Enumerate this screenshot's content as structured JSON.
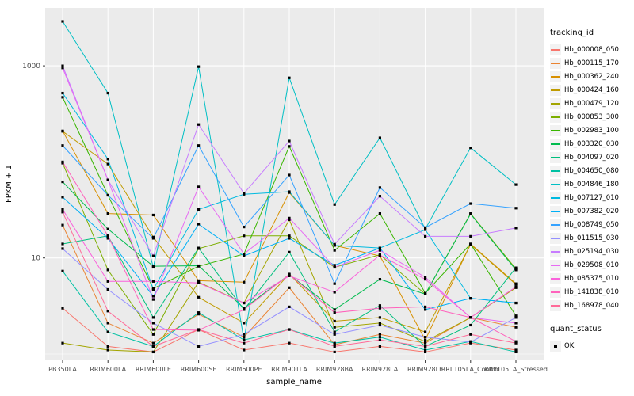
{
  "figure": {
    "background": "#FFFFFF",
    "panel_background": "#EBEBEB",
    "grid_color": "#FFFFFF",
    "axis_text_color": "#4D4D4D",
    "tick_color": "#333333",
    "point_color": "#000000"
  },
  "axes": {
    "x_title": "sample_name",
    "y_title": "FPKM + 1",
    "y_ticks": [
      {
        "label": "1000",
        "value": 1000
      },
      {
        "label": "10",
        "value": 10
      }
    ],
    "y_minor_gridlines": [
      100,
      1
    ]
  },
  "legend": {
    "tracking_title": "tracking_id",
    "quant_title": "quant_status",
    "quant_items": [
      {
        "label": "OK",
        "key": "black-square-point"
      }
    ]
  },
  "chart_data": {
    "type": "line",
    "title": "",
    "xlabel": "sample_name",
    "ylabel": "FPKM + 1",
    "y_scale": "log10",
    "ylim": [
      0.9,
      4000
    ],
    "grid": true,
    "legend_position": "right",
    "point_marker": "black-square",
    "categories": [
      "PB350LA",
      "RRIM600LA",
      "RRIM600LE",
      "RRIM600SE",
      "RRIM600PE",
      "RRIM901LA",
      "RRIM928BA",
      "RRIM928LA",
      "RRIM928LE",
      "RRII105LA_Control",
      "RRII105LA_Stressed"
    ],
    "series": [
      {
        "name": "Hb_000008_050",
        "color": "#F8766D",
        "values": [
          3,
          1.2,
          1.05,
          1.8,
          1.1,
          1.3,
          1.05,
          1.2,
          1.05,
          1.3,
          1.1
        ]
      },
      {
        "name": "Hb_000115_170",
        "color": "#EA8331",
        "values": [
          22,
          2.1,
          1.3,
          2.6,
          1.5,
          4.9,
          1.25,
          1.6,
          1.3,
          2.4,
          1.9
        ]
      },
      {
        "name": "Hb_000362_240",
        "color": "#D89000",
        "values": [
          210,
          29,
          28,
          5.8,
          5.6,
          48,
          13.5,
          10.5,
          1.4,
          14,
          5.4
        ]
      },
      {
        "name": "Hb_000424_160",
        "color": "#C09B00",
        "values": [
          208,
          95,
          16.5,
          3.9,
          2.1,
          6.8,
          2.2,
          2.4,
          1.7,
          13.8,
          5.3
        ]
      },
      {
        "name": "Hb_000479_120",
        "color": "#A3A500",
        "values": [
          1.3,
          1.1,
          1.05,
          5.6,
          3.4,
          25,
          1.9,
          2.1,
          1.35,
          2.4,
          4.9
        ]
      },
      {
        "name": "Hb_000853_300",
        "color": "#7CAE00",
        "values": [
          97,
          7.5,
          1.6,
          12.5,
          17,
          17,
          8,
          10.8,
          4.2,
          29,
          7.7
        ]
      },
      {
        "name": "Hb_002983_100",
        "color": "#39B600",
        "values": [
          470,
          45,
          4.8,
          8.2,
          11,
          145,
          12,
          29,
          4.3,
          14,
          2.5
        ]
      },
      {
        "name": "Hb_003320_030",
        "color": "#00BB4E",
        "values": [
          62,
          20,
          8.2,
          8.3,
          3,
          6.7,
          2.9,
          6,
          4.2,
          28.7,
          7.5
        ]
      },
      {
        "name": "Hb_004097_020",
        "color": "#00BF7D",
        "values": [
          14,
          17,
          2.4,
          12.7,
          2.9,
          11.5,
          1.7,
          3.2,
          1.2,
          2,
          7.9
        ]
      },
      {
        "name": "Hb_004650_080",
        "color": "#00C1A3",
        "values": [
          7.3,
          1.7,
          1.2,
          2.7,
          1.4,
          1.8,
          1.3,
          1.5,
          1.1,
          1.35,
          1.05
        ]
      },
      {
        "name": "Hb_004846_180",
        "color": "#00BFC4",
        "values": [
          2900,
          520,
          8,
          980,
          1.4,
          750,
          36,
          178,
          20,
          140,
          58
        ]
      },
      {
        "name": "Hb_007127_010",
        "color": "#00BAE0",
        "values": [
          520,
          107,
          4.7,
          32,
          46,
          49,
          13.5,
          12.7,
          19.7,
          3.8,
          3.4
        ]
      },
      {
        "name": "Hb_007382_020",
        "color": "#00B0F6",
        "values": [
          43,
          16,
          4,
          22.5,
          10.5,
          16,
          8.4,
          12.7,
          2.9,
          3.8,
          3.4
        ]
      },
      {
        "name": "Hb_008749_050",
        "color": "#35A2FF",
        "values": [
          148,
          45,
          16,
          148,
          21,
          73,
          5.4,
          54,
          20.7,
          36.8,
          33
        ]
      },
      {
        "name": "Hb_011515_030",
        "color": "#9590FF",
        "values": [
          12.5,
          4.7,
          2.1,
          1.2,
          1.6,
          3.1,
          1.6,
          2,
          1.5,
          1.33,
          2.4
        ]
      },
      {
        "name": "Hb_025194_030",
        "color": "#C77CFF",
        "values": [
          1000,
          65,
          10.5,
          245,
          47,
          165,
          13.9,
          44,
          16.8,
          16.8,
          20.5
        ]
      },
      {
        "name": "Hb_029508_010",
        "color": "#E76BF3",
        "values": [
          950,
          65,
          3.7,
          55,
          11,
          26,
          8,
          12,
          6.3,
          2.4,
          2.1
        ]
      },
      {
        "name": "Hb_085375_010",
        "color": "#FA62DB",
        "values": [
          32,
          5.7,
          5.7,
          5.5,
          3.4,
          6.5,
          4.4,
          10.7,
          6,
          2.4,
          5
        ]
      },
      {
        "name": "Hb_141838_010",
        "color": "#FF62BC",
        "values": [
          100,
          17,
          1.8,
          1.77,
          2.9,
          6.7,
          2.7,
          3,
          3.1,
          2.4,
          1.35
        ]
      },
      {
        "name": "Hb_168978_040",
        "color": "#FF6A98",
        "values": [
          30,
          2.8,
          1.2,
          1.8,
          1.3,
          1.8,
          1.2,
          1.4,
          1.2,
          1.6,
          1.3
        ]
      }
    ]
  }
}
